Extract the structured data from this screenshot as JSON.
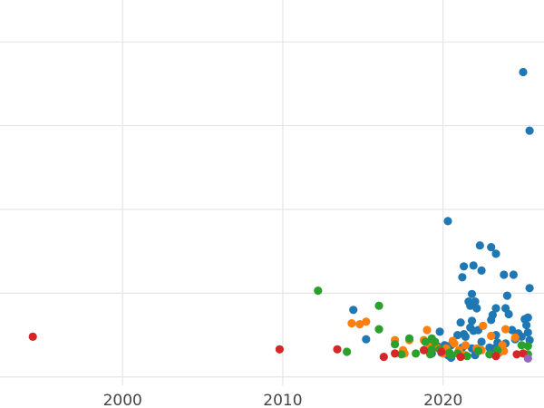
{
  "chart_data": {
    "type": "scatter",
    "title": "",
    "xlabel": "",
    "ylabel": "",
    "x_ticks": [
      2000,
      2010,
      2020
    ],
    "xlim": [
      1992.35,
      2026.3
    ],
    "ylim": [
      0,
      460
    ],
    "y_gridlines": [
      10,
      110,
      210,
      310,
      410
    ],
    "grid": true,
    "legend": "none",
    "colors": {
      "blue": "#1f77b4",
      "orange": "#ff7f0e",
      "green": "#2ca02c",
      "red": "#d62728",
      "purple": "#9467bd"
    },
    "series": [
      {
        "color": "#1f77b4",
        "points": [
          [
            2025.0,
            374
          ],
          [
            2025.4,
            304
          ],
          [
            2020.3,
            196
          ],
          [
            2022.3,
            167
          ],
          [
            2023.0,
            165
          ],
          [
            2023.3,
            157
          ],
          [
            2021.3,
            142
          ],
          [
            2021.9,
            143
          ],
          [
            2021.2,
            129
          ],
          [
            2022.4,
            137
          ],
          [
            2023.8,
            132
          ],
          [
            2024.4,
            132
          ],
          [
            2025.4,
            116
          ],
          [
            2021.8,
            109
          ],
          [
            2024.0,
            107
          ],
          [
            2021.6,
            100
          ],
          [
            2022.0,
            100
          ],
          [
            2021.7,
            95
          ],
          [
            2022.1,
            92
          ],
          [
            2023.3,
            92
          ],
          [
            2023.9,
            92
          ],
          [
            2014.4,
            90
          ],
          [
            2024.1,
            85
          ],
          [
            2023.1,
            84
          ],
          [
            2025.3,
            81
          ],
          [
            2025.1,
            79
          ],
          [
            2021.8,
            77
          ],
          [
            2023.0,
            78
          ],
          [
            2021.1,
            75
          ],
          [
            2025.2,
            72
          ],
          [
            2021.7,
            69
          ],
          [
            2021.9,
            65
          ],
          [
            2022.2,
            66
          ],
          [
            2024.3,
            66
          ],
          [
            2024.7,
            62
          ],
          [
            2025.3,
            63
          ],
          [
            2024.9,
            58
          ],
          [
            2019.8,
            64
          ],
          [
            2021.3,
            61
          ],
          [
            2015.2,
            55
          ],
          [
            2020.9,
            60
          ],
          [
            2021.4,
            58
          ],
          [
            2023.3,
            60
          ],
          [
            2022.4,
            52
          ],
          [
            2023.4,
            51
          ],
          [
            2023.9,
            50
          ],
          [
            2024.5,
            55
          ],
          [
            2025.4,
            54
          ],
          [
            2019.2,
            49
          ],
          [
            2019.7,
            46
          ],
          [
            2020.1,
            48
          ],
          [
            2020.5,
            48
          ],
          [
            2021.2,
            45
          ],
          [
            2021.8,
            44
          ],
          [
            2022.9,
            45
          ],
          [
            2023.2,
            44
          ],
          [
            2019.3,
            38
          ],
          [
            2019.9,
            39
          ],
          [
            2020.3,
            36
          ],
          [
            2021.0,
            38
          ],
          [
            2022.0,
            36
          ],
          [
            2022.9,
            37
          ],
          [
            2020.5,
            33
          ]
        ]
      },
      {
        "color": "#ff7f0e",
        "points": [
          [
            2014.3,
            74
          ],
          [
            2014.8,
            73
          ],
          [
            2015.2,
            76
          ],
          [
            2022.5,
            71
          ],
          [
            2023.9,
            67
          ],
          [
            2019.0,
            66
          ],
          [
            2017.0,
            54
          ],
          [
            2017.9,
            54
          ],
          [
            2018.8,
            54
          ],
          [
            2020.6,
            53
          ],
          [
            2023.0,
            59
          ],
          [
            2024.5,
            57
          ],
          [
            2020.7,
            50
          ],
          [
            2021.4,
            48
          ],
          [
            2023.7,
            48
          ],
          [
            2019.2,
            46
          ],
          [
            2019.7,
            44
          ],
          [
            2020.2,
            44
          ],
          [
            2022.1,
            44
          ],
          [
            2023.8,
            41
          ],
          [
            2017.5,
            42
          ],
          [
            2019.2,
            41
          ],
          [
            2021.0,
            42
          ],
          [
            2022.4,
            42
          ],
          [
            2017.6,
            38
          ],
          [
            2020.0,
            38
          ],
          [
            2021.4,
            36
          ],
          [
            2023.5,
            39
          ]
        ]
      },
      {
        "color": "#2ca02c",
        "points": [
          [
            2012.2,
            113
          ],
          [
            2016.0,
            95
          ],
          [
            2016.0,
            67
          ],
          [
            2014.0,
            40
          ],
          [
            2017.9,
            56
          ],
          [
            2019.3,
            56
          ],
          [
            2017.0,
            49
          ],
          [
            2018.9,
            52
          ],
          [
            2019.5,
            52
          ],
          [
            2019.3,
            43
          ],
          [
            2019.8,
            43
          ],
          [
            2020.4,
            39
          ],
          [
            2020.9,
            38
          ],
          [
            2022.2,
            41
          ],
          [
            2023.4,
            42
          ],
          [
            2017.4,
            37
          ],
          [
            2018.3,
            38
          ],
          [
            2019.2,
            37
          ],
          [
            2020.5,
            36
          ],
          [
            2021.5,
            35
          ],
          [
            2022.9,
            37
          ],
          [
            2024.9,
            48
          ],
          [
            2025.3,
            47
          ],
          [
            2025.3,
            37
          ]
        ]
      },
      {
        "color": "#d62728",
        "points": [
          [
            1994.4,
            58
          ],
          [
            2009.8,
            43
          ],
          [
            2013.4,
            43
          ],
          [
            2017.0,
            38
          ],
          [
            2016.3,
            34
          ],
          [
            2018.8,
            42
          ],
          [
            2019.9,
            40
          ],
          [
            2021.1,
            34
          ],
          [
            2023.3,
            35
          ],
          [
            2024.6,
            37
          ],
          [
            2025.0,
            38
          ]
        ]
      },
      {
        "color": "#9467bd",
        "points": [
          [
            2025.3,
            32
          ]
        ]
      }
    ]
  }
}
